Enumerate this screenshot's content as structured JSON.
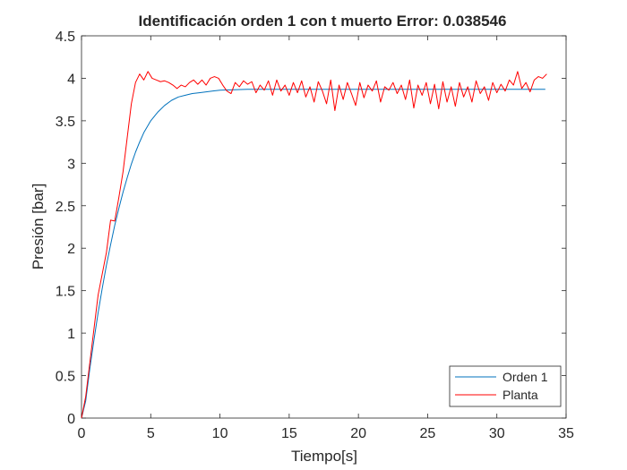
{
  "chart_data": {
    "type": "line",
    "title": "Identificación orden 1 con t muerto Error: 0.038546",
    "xlabel": "Tiempo[s]",
    "ylabel": "Presión [bar]",
    "xlim": [
      0,
      35
    ],
    "ylim": [
      0,
      4.5
    ],
    "xticks": [
      0,
      5,
      10,
      15,
      20,
      25,
      30,
      35
    ],
    "yticks": [
      0,
      0.5,
      1,
      1.5,
      2,
      2.5,
      3,
      3.5,
      4,
      4.5
    ],
    "xtick_labels": [
      "0",
      "5",
      "10",
      "15",
      "20",
      "25",
      "30",
      "35"
    ],
    "ytick_labels": [
      "0",
      "0.5",
      "1",
      "1.5",
      "2",
      "2.5",
      "3",
      "3.5",
      "4",
      "4.5"
    ],
    "grid": false,
    "legend_position": "bottom-right",
    "series": [
      {
        "name": "Orden 1",
        "color": "#0072BD",
        "x": [
          0,
          0.3,
          0.6,
          0.9,
          1.2,
          1.5,
          1.8,
          2.1,
          2.4,
          2.7,
          3.0,
          3.3,
          3.6,
          3.9,
          4.2,
          4.5,
          5,
          5.5,
          6,
          6.5,
          7,
          7.5,
          8,
          8.5,
          9,
          9.5,
          10,
          11,
          12,
          13,
          14,
          15,
          17,
          20,
          25,
          30,
          33.5
        ],
        "y": [
          0,
          0.2,
          0.58,
          0.92,
          1.24,
          1.53,
          1.8,
          2.04,
          2.27,
          2.47,
          2.66,
          2.83,
          2.99,
          3.13,
          3.25,
          3.36,
          3.5,
          3.6,
          3.68,
          3.74,
          3.78,
          3.8,
          3.82,
          3.83,
          3.84,
          3.85,
          3.86,
          3.865,
          3.87,
          3.87,
          3.87,
          3.87,
          3.87,
          3.87,
          3.87,
          3.87,
          3.87
        ]
      },
      {
        "name": "Planta",
        "color": "#FF0000",
        "x": [
          0,
          0.3,
          0.6,
          0.9,
          1.2,
          1.5,
          1.8,
          2.1,
          2.4,
          2.7,
          3.0,
          3.3,
          3.6,
          3.9,
          4.2,
          4.5,
          4.8,
          5.1,
          5.4,
          5.7,
          6.0,
          6.3,
          6.6,
          6.9,
          7.2,
          7.5,
          7.8,
          8.1,
          8.4,
          8.7,
          9.0,
          9.3,
          9.6,
          9.9,
          10.2,
          10.5,
          10.8,
          11.1,
          11.4,
          11.7,
          12.0,
          12.3,
          12.6,
          12.9,
          13.2,
          13.5,
          13.8,
          14.1,
          14.4,
          14.7,
          15.0,
          15.3,
          15.6,
          15.9,
          16.2,
          16.5,
          16.8,
          17.1,
          17.4,
          17.7,
          18.0,
          18.3,
          18.6,
          18.9,
          19.2,
          19.5,
          19.8,
          20.1,
          20.4,
          20.7,
          21.0,
          21.3,
          21.6,
          21.9,
          22.2,
          22.5,
          22.8,
          23.1,
          23.4,
          23.7,
          24.0,
          24.3,
          24.6,
          24.9,
          25.2,
          25.5,
          25.8,
          26.1,
          26.4,
          26.7,
          27.0,
          27.3,
          27.6,
          27.9,
          28.2,
          28.5,
          28.8,
          29.1,
          29.4,
          29.7,
          30.0,
          30.3,
          30.6,
          30.9,
          31.2,
          31.5,
          31.8,
          32.1,
          32.4,
          32.7,
          33.0,
          33.3,
          33.6
        ],
        "y": [
          0,
          0.25,
          0.65,
          1.05,
          1.45,
          1.7,
          1.95,
          2.33,
          2.32,
          2.6,
          2.9,
          3.3,
          3.7,
          3.95,
          4.05,
          3.98,
          4.08,
          4.0,
          3.98,
          3.96,
          3.97,
          3.95,
          3.92,
          3.88,
          3.92,
          3.9,
          3.95,
          3.98,
          3.93,
          3.98,
          3.92,
          4.0,
          4.02,
          4.0,
          3.92,
          3.85,
          3.82,
          3.95,
          3.9,
          3.97,
          3.93,
          3.96,
          3.83,
          3.92,
          3.86,
          3.97,
          3.8,
          3.98,
          3.85,
          3.92,
          3.8,
          3.95,
          3.83,
          3.97,
          3.78,
          3.9,
          3.72,
          3.96,
          3.85,
          3.7,
          3.98,
          3.62,
          3.92,
          3.75,
          3.95,
          3.82,
          3.68,
          3.95,
          3.77,
          3.92,
          3.85,
          3.97,
          3.72,
          3.9,
          3.86,
          3.95,
          3.82,
          3.92,
          3.75,
          3.98,
          3.65,
          3.92,
          3.8,
          3.95,
          3.7,
          3.93,
          3.64,
          3.96,
          3.72,
          3.9,
          3.67,
          3.95,
          3.78,
          3.9,
          3.72,
          3.97,
          3.82,
          3.9,
          3.74,
          3.95,
          3.83,
          3.93,
          3.85,
          3.98,
          3.92,
          4.08,
          3.88,
          3.95,
          3.84,
          3.98,
          4.02,
          4.0,
          4.05
        ]
      }
    ]
  }
}
